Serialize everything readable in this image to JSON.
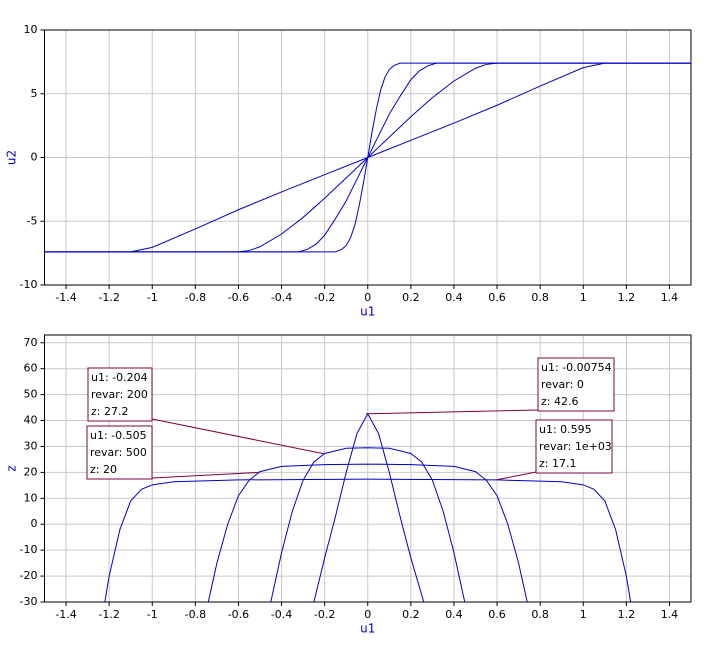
{
  "chart_data": [
    {
      "type": "line",
      "xlabel": "u1",
      "ylabel": "u2",
      "xlim": [
        -1.5,
        1.5
      ],
      "ylim": [
        -10,
        10
      ],
      "xticks": [
        -1.4,
        -1.2,
        -1,
        -0.8,
        -0.6,
        -0.4,
        -0.2,
        0,
        0.2,
        0.4,
        0.6,
        0.8,
        1,
        1.2,
        1.4
      ],
      "yticks": [
        -10,
        -5,
        0,
        5,
        10
      ],
      "grid": true,
      "color": "#0000cc",
      "series": [
        {
          "x": [
            -1.5,
            -1.1,
            -1.0,
            -0.8,
            -0.6,
            -0.4,
            -0.2,
            0,
            0.2,
            0.4,
            0.6,
            0.8,
            1.0,
            1.1,
            1.5
          ],
          "values": [
            -7.4,
            -7.4,
            -7.05,
            -5.6,
            -4.1,
            -2.7,
            -1.35,
            0,
            1.35,
            2.7,
            4.1,
            5.6,
            7.05,
            7.4,
            7.4
          ]
        },
        {
          "x": [
            -1.5,
            -0.6,
            -0.55,
            -0.5,
            -0.4,
            -0.3,
            -0.2,
            -0.1,
            0,
            0.1,
            0.2,
            0.3,
            0.4,
            0.5,
            0.55,
            0.6,
            1.5
          ],
          "values": [
            -7.4,
            -7.4,
            -7.3,
            -7.0,
            -6.0,
            -4.7,
            -3.2,
            -1.6,
            0,
            1.6,
            3.2,
            4.7,
            6.0,
            7.0,
            7.3,
            7.4,
            7.4
          ]
        },
        {
          "x": [
            -1.5,
            -0.32,
            -0.28,
            -0.24,
            -0.2,
            -0.15,
            -0.1,
            -0.05,
            0,
            0.05,
            0.1,
            0.15,
            0.2,
            0.24,
            0.28,
            0.32,
            1.5
          ],
          "values": [
            -7.4,
            -7.4,
            -7.2,
            -6.8,
            -6.1,
            -4.8,
            -3.4,
            -1.7,
            0,
            1.7,
            3.4,
            4.8,
            6.1,
            6.8,
            7.2,
            7.4,
            7.4
          ]
        },
        {
          "x": [
            -1.5,
            -0.15,
            -0.12,
            -0.1,
            -0.08,
            -0.06,
            -0.04,
            -0.02,
            0,
            0.02,
            0.04,
            0.06,
            0.08,
            0.1,
            0.12,
            0.15,
            1.5
          ],
          "values": [
            -7.4,
            -7.4,
            -7.2,
            -6.9,
            -6.3,
            -5.3,
            -3.8,
            -2.0,
            0,
            2.0,
            3.8,
            5.3,
            6.3,
            6.9,
            7.2,
            7.4,
            7.4
          ]
        }
      ]
    },
    {
      "type": "line",
      "xlabel": "u1",
      "ylabel": "z",
      "xlim": [
        -1.5,
        1.5
      ],
      "ylim": [
        -30,
        73
      ],
      "xticks": [
        -1.4,
        -1.2,
        -1,
        -0.8,
        -0.6,
        -0.4,
        -0.2,
        0,
        0.2,
        0.4,
        0.6,
        0.8,
        1,
        1.2,
        1.4
      ],
      "yticks": [
        -30,
        -20,
        -10,
        0,
        10,
        20,
        30,
        40,
        50,
        60,
        70
      ],
      "grid": true,
      "color": "#0000cc",
      "series": [
        {
          "x": [
            -0.25,
            -0.2,
            -0.15,
            -0.1,
            -0.05,
            0,
            0.05,
            0.1,
            0.15,
            0.2,
            0.26
          ],
          "values": [
            -30,
            -13,
            3,
            20,
            35,
            42.6,
            35,
            20,
            3,
            -13,
            -30
          ]
        },
        {
          "x": [
            -0.45,
            -0.4,
            -0.35,
            -0.3,
            -0.25,
            -0.2,
            -0.1,
            0,
            0.1,
            0.2,
            0.25,
            0.3,
            0.35,
            0.4,
            0.45
          ],
          "values": [
            -30,
            -11,
            5,
            17,
            24,
            27.3,
            29.3,
            29.5,
            29.3,
            27.3,
            24,
            17,
            5,
            -11,
            -30
          ]
        },
        {
          "x": [
            -0.74,
            -0.7,
            -0.65,
            -0.6,
            -0.55,
            -0.5,
            -0.4,
            -0.2,
            0,
            0.2,
            0.4,
            0.5,
            0.55,
            0.6,
            0.65,
            0.7,
            0.74
          ],
          "values": [
            -30,
            -15,
            0,
            11,
            17,
            20.3,
            22.3,
            23,
            23.2,
            23,
            22.3,
            20.3,
            17,
            11,
            0,
            -15,
            -30
          ]
        },
        {
          "x": [
            -1.22,
            -1.2,
            -1.15,
            -1.1,
            -1.05,
            -1.0,
            -0.9,
            -0.6,
            0,
            0.6,
            0.9,
            1.0,
            1.05,
            1.1,
            1.15,
            1.2,
            1.22
          ],
          "values": [
            -30,
            -20,
            -2,
            9,
            13.5,
            15.2,
            16.4,
            17.1,
            17.4,
            17.1,
            16.4,
            15.2,
            13.5,
            9,
            -2,
            -20,
            -30
          ]
        }
      ],
      "annotations": [
        {
          "lines": [
            "u1: -0.204",
            "revar: 200",
            "z: 27.2"
          ],
          "x": -0.204,
          "y": 27.2
        },
        {
          "lines": [
            "u1: -0.505",
            "revar: 500",
            "z: 20"
          ],
          "x": -0.505,
          "y": 20
        },
        {
          "lines": [
            "u1: -0.00754",
            "revar: 0",
            "z: 42.6"
          ],
          "x": -0.00754,
          "y": 42.6
        },
        {
          "lines": [
            "u1: 0.595",
            "revar: 1e+03",
            "z: 17.1"
          ],
          "x": 0.595,
          "y": 17.1
        }
      ]
    }
  ]
}
